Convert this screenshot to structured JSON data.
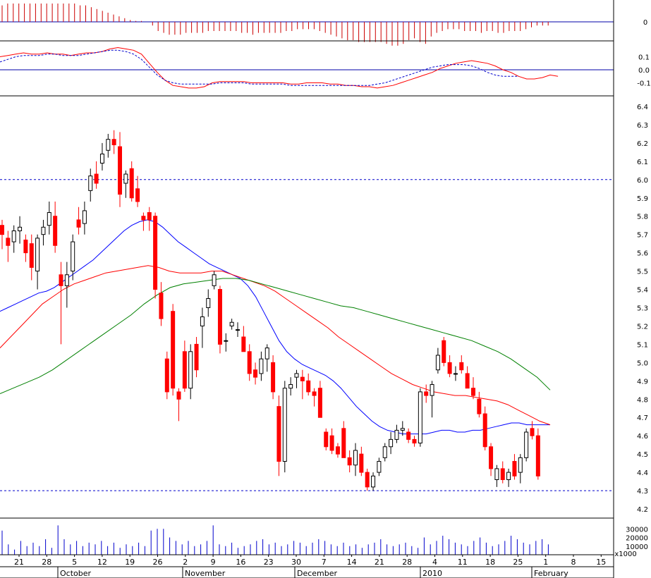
{
  "colors": {
    "up": "#000000",
    "down": "#ff0000",
    "ma_fast": "#0000ff",
    "ma_mid": "#ff0000",
    "ma_slow": "#008000",
    "hist": "#cc0000",
    "volume": "#0000cc",
    "ref_line": "#0000aa",
    "grid_dash": "#0000cc"
  },
  "chart_data": [
    {
      "type": "bar",
      "panel": "histogram",
      "ytick_labels": [
        "0"
      ],
      "values": [
        0.9,
        1.0,
        1.0,
        1.0,
        1.0,
        1.0,
        1.0,
        1.0,
        1.0,
        1.0,
        1.0,
        1.0,
        1.0,
        1.0,
        0.9,
        0.9,
        0.8,
        0.7,
        0.6,
        0.5,
        0.4,
        0.3,
        0.2,
        0.1,
        0.05,
        0.05,
        0.0,
        -0.2,
        -0.5,
        -0.6,
        -0.7,
        -0.7,
        -0.7,
        -0.6,
        -0.6,
        -0.6,
        -0.6,
        -0.5,
        -0.5,
        -0.5,
        -0.5,
        -0.5,
        -0.5,
        -0.6,
        -0.6,
        -0.7,
        -0.6,
        -0.6,
        -0.6,
        -0.6,
        -0.6,
        -0.5,
        -0.5,
        -0.4,
        -0.4,
        -0.4,
        -0.4,
        -0.5,
        -0.6,
        -0.7,
        -0.8,
        -0.9,
        -1.0,
        -1.0,
        -1.1,
        -1.1,
        -1.1,
        -1.1,
        -1.1,
        -1.2,
        -1.3,
        -1.3,
        -1.2,
        -1.0,
        -0.9,
        -1.1,
        -1.2,
        -0.8,
        -0.6,
        -0.5,
        -0.4,
        -0.4,
        -0.4,
        -0.5,
        -0.5,
        -0.5,
        -0.6,
        -0.5,
        -0.5,
        -0.6,
        -0.6,
        -0.5,
        -0.5,
        -0.5,
        -0.4,
        -0.3,
        -0.2,
        -0.2,
        -0.2
      ]
    },
    {
      "type": "line",
      "panel": "oscillator",
      "ytick_labels": [
        "0.1",
        "0.0",
        "-0.1"
      ],
      "ylim": [
        -0.2,
        0.2
      ],
      "series": [
        {
          "values": [
            0.1,
            0.11,
            0.12,
            0.13,
            0.12,
            0.12,
            0.13,
            0.12,
            0.12,
            0.11,
            0.12,
            0.13,
            0.13,
            0.14,
            0.16,
            0.17,
            0.16,
            0.15,
            0.12,
            0.05,
            -0.02,
            -0.08,
            -0.12,
            -0.13,
            -0.14,
            -0.14,
            -0.13,
            -0.1,
            -0.09,
            -0.09,
            -0.09,
            -0.09,
            -0.1,
            -0.1,
            -0.1,
            -0.1,
            -0.1,
            -0.11,
            -0.11,
            -0.1,
            -0.1,
            -0.1,
            -0.11,
            -0.11,
            -0.12,
            -0.12,
            -0.13,
            -0.13,
            -0.14,
            -0.13,
            -0.12,
            -0.1,
            -0.08,
            -0.06,
            -0.04,
            -0.02,
            0.01,
            0.03,
            0.05,
            0.06,
            0.07,
            0.06,
            0.05,
            0.03,
            0.0,
            -0.02,
            -0.05,
            -0.07,
            -0.07,
            -0.06,
            -0.04,
            -0.05
          ]
        },
        {
          "values": [
            0.06,
            0.08,
            0.1,
            0.11,
            0.11,
            0.11,
            0.12,
            0.12,
            0.11,
            0.11,
            0.11,
            0.12,
            0.13,
            0.14,
            0.15,
            0.15,
            0.14,
            0.12,
            0.08,
            0.02,
            -0.04,
            -0.08,
            -0.1,
            -0.11,
            -0.11,
            -0.11,
            -0.11,
            -0.11,
            -0.1,
            -0.1,
            -0.1,
            -0.1,
            -0.11,
            -0.11,
            -0.11,
            -0.11,
            -0.11,
            -0.12,
            -0.12,
            -0.12,
            -0.12,
            -0.12,
            -0.12,
            -0.12,
            -0.12,
            -0.12,
            -0.12,
            -0.12,
            -0.11,
            -0.1,
            -0.08,
            -0.06,
            -0.04,
            -0.02,
            0.0,
            0.02,
            0.03,
            0.04,
            0.04,
            0.04,
            0.03,
            0.01,
            -0.02,
            -0.04,
            -0.05,
            -0.05,
            -0.05
          ]
        }
      ]
    },
    {
      "type": "candlestick",
      "panel": "price",
      "ytick_labels": [
        "6.4",
        "6.3",
        "6.2",
        "6.1",
        "6.0",
        "5.9",
        "5.8",
        "5.7",
        "5.6",
        "5.5",
        "5.4",
        "5.3",
        "5.2",
        "5.1",
        "5.0",
        "4.9",
        "4.8",
        "4.7",
        "4.6",
        "4.5",
        "4.4",
        "4.3",
        "4.2"
      ],
      "ylim": [
        4.15,
        6.45
      ],
      "reference_lines": [
        6.0,
        4.3
      ],
      "ohlc": [
        [
          5.75,
          5.78,
          5.62,
          5.7
        ],
        [
          5.68,
          5.72,
          5.55,
          5.64
        ],
        [
          5.66,
          5.75,
          5.6,
          5.72
        ],
        [
          5.72,
          5.8,
          5.65,
          5.74
        ],
        [
          5.67,
          5.7,
          5.55,
          5.6
        ],
        [
          5.65,
          5.7,
          5.45,
          5.52
        ],
        [
          5.5,
          5.7,
          5.4,
          5.68
        ],
        [
          5.7,
          5.78,
          5.64,
          5.74
        ],
        [
          5.75,
          5.88,
          5.7,
          5.82
        ],
        [
          5.8,
          5.88,
          5.6,
          5.64
        ],
        [
          5.48,
          5.55,
          5.1,
          5.42
        ],
        [
          5.42,
          5.55,
          5.3,
          5.48
        ],
        [
          5.5,
          5.7,
          5.45,
          5.66
        ],
        [
          5.78,
          5.85,
          5.7,
          5.74
        ],
        [
          5.76,
          5.88,
          5.7,
          5.83
        ],
        [
          5.94,
          6.06,
          5.88,
          6.02
        ],
        [
          6.03,
          6.1,
          5.95,
          5.98
        ],
        [
          6.09,
          6.2,
          6.05,
          6.14
        ],
        [
          6.16,
          6.25,
          6.12,
          6.22
        ],
        [
          6.22,
          6.27,
          6.14,
          6.19
        ],
        [
          6.18,
          6.26,
          5.85,
          5.92
        ],
        [
          5.98,
          6.05,
          5.9,
          6.03
        ],
        [
          6.06,
          6.1,
          5.88,
          5.9
        ],
        [
          5.95,
          6.02,
          5.85,
          5.88
        ],
        [
          5.8,
          5.82,
          5.72,
          5.78
        ],
        [
          5.82,
          5.85,
          5.72,
          5.78
        ],
        [
          5.8,
          5.82,
          5.35,
          5.4
        ],
        [
          5.38,
          5.44,
          5.2,
          5.24
        ],
        [
          5.02,
          5.06,
          4.8,
          4.84
        ],
        [
          5.28,
          5.32,
          4.82,
          4.86
        ],
        [
          4.84,
          4.86,
          4.68,
          4.8
        ],
        [
          5.06,
          5.12,
          4.84,
          4.86
        ],
        [
          4.86,
          5.1,
          4.8,
          5.06
        ],
        [
          5.1,
          5.14,
          4.92,
          4.96
        ],
        [
          5.2,
          5.3,
          5.08,
          5.25
        ],
        [
          5.3,
          5.4,
          5.25,
          5.35
        ],
        [
          5.42,
          5.5,
          5.4,
          5.48
        ],
        [
          5.4,
          5.42,
          5.05,
          5.1
        ],
        [
          5.12,
          5.16,
          5.06,
          5.12
        ],
        [
          5.2,
          5.24,
          5.18,
          5.22
        ],
        [
          5.18,
          5.22,
          5.14,
          5.18
        ],
        [
          5.14,
          5.2,
          5.06,
          5.06
        ],
        [
          5.06,
          5.1,
          4.9,
          4.94
        ],
        [
          4.96,
          5.0,
          4.88,
          4.92
        ],
        [
          4.94,
          5.06,
          4.9,
          5.02
        ],
        [
          5.02,
          5.1,
          4.95,
          5.08
        ],
        [
          5.0,
          5.04,
          4.8,
          4.84
        ],
        [
          4.76,
          4.82,
          4.38,
          4.46
        ],
        [
          4.46,
          4.9,
          4.4,
          4.86
        ],
        [
          4.86,
          4.92,
          4.82,
          4.88
        ],
        [
          4.92,
          4.96,
          4.86,
          4.94
        ],
        [
          4.92,
          4.96,
          4.8,
          4.9
        ],
        [
          4.9,
          4.94,
          4.82,
          4.84
        ],
        [
          4.84,
          4.86,
          4.76,
          4.82
        ],
        [
          4.86,
          4.9,
          4.7,
          4.7
        ],
        [
          4.62,
          4.64,
          4.52,
          4.54
        ],
        [
          4.6,
          4.64,
          4.5,
          4.52
        ],
        [
          4.54,
          4.56,
          4.48,
          4.5
        ],
        [
          4.64,
          4.68,
          4.48,
          4.48
        ],
        [
          4.48,
          4.52,
          4.4,
          4.44
        ],
        [
          4.44,
          4.56,
          4.38,
          4.52
        ],
        [
          4.5,
          4.54,
          4.38,
          4.4
        ],
        [
          4.4,
          4.42,
          4.3,
          4.32
        ],
        [
          4.32,
          4.4,
          4.3,
          4.38
        ],
        [
          4.4,
          4.48,
          4.38,
          4.46
        ],
        [
          4.48,
          4.56,
          4.46,
          4.54
        ],
        [
          4.54,
          4.62,
          4.5,
          4.58
        ],
        [
          4.58,
          4.66,
          4.56,
          4.63
        ],
        [
          4.63,
          4.68,
          4.6,
          4.64
        ],
        [
          4.62,
          4.64,
          4.56,
          4.58
        ],
        [
          4.58,
          4.6,
          4.54,
          4.56
        ],
        [
          4.56,
          4.86,
          4.54,
          4.84
        ],
        [
          4.84,
          4.88,
          4.78,
          4.82
        ],
        [
          4.82,
          4.9,
          4.7,
          4.88
        ],
        [
          4.96,
          5.08,
          4.94,
          5.04
        ],
        [
          5.12,
          5.14,
          4.98,
          5.0
        ],
        [
          5.0,
          5.04,
          4.92,
          4.94
        ],
        [
          4.94,
          4.98,
          4.9,
          4.94
        ],
        [
          5.0,
          5.04,
          4.94,
          4.96
        ],
        [
          4.94,
          4.98,
          4.86,
          4.86
        ],
        [
          4.86,
          4.92,
          4.8,
          4.82
        ],
        [
          4.8,
          4.84,
          4.7,
          4.72
        ],
        [
          4.72,
          4.76,
          4.52,
          4.54
        ],
        [
          4.54,
          4.56,
          4.38,
          4.42
        ],
        [
          4.36,
          4.44,
          4.32,
          4.42
        ],
        [
          4.42,
          4.46,
          4.34,
          4.36
        ],
        [
          4.36,
          4.42,
          4.32,
          4.4
        ],
        [
          4.46,
          4.5,
          4.36,
          4.38
        ],
        [
          4.4,
          4.5,
          4.34,
          4.48
        ],
        [
          4.48,
          4.64,
          4.46,
          4.62
        ],
        [
          4.64,
          4.68,
          4.58,
          4.6
        ],
        [
          4.6,
          4.64,
          4.36,
          4.38
        ]
      ],
      "series": [
        {
          "values": [
            5.28,
            5.3,
            5.32,
            5.34,
            5.36,
            5.38,
            5.39,
            5.41,
            5.44,
            5.47,
            5.5,
            5.53,
            5.56,
            5.6,
            5.64,
            5.68,
            5.72,
            5.75,
            5.77,
            5.78,
            5.77,
            5.74,
            5.7,
            5.66,
            5.63,
            5.6,
            5.57,
            5.54,
            5.52,
            5.5,
            5.48,
            5.46,
            5.42,
            5.36,
            5.28,
            5.2,
            5.12,
            5.06,
            5.02,
            4.99,
            4.97,
            4.95,
            4.93,
            4.9,
            4.86,
            4.81,
            4.76,
            4.72,
            4.68,
            4.65,
            4.63,
            4.62,
            4.61,
            4.61,
            4.61,
            4.61,
            4.62,
            4.63,
            4.63,
            4.62,
            4.62,
            4.63,
            4.63,
            4.64,
            4.65,
            4.66,
            4.67,
            4.67,
            4.66,
            4.66,
            4.66,
            4.66
          ]
        },
        {
          "values": [
            5.08,
            5.14,
            5.2,
            5.26,
            5.32,
            5.36,
            5.4,
            5.43,
            5.45,
            5.47,
            5.49,
            5.5,
            5.51,
            5.52,
            5.53,
            5.52,
            5.5,
            5.49,
            5.49,
            5.49,
            5.5,
            5.5,
            5.48,
            5.46,
            5.44,
            5.42,
            5.39,
            5.35,
            5.31,
            5.27,
            5.23,
            5.19,
            5.14,
            5.1,
            5.06,
            5.02,
            4.98,
            4.94,
            4.91,
            4.88,
            4.86,
            4.84,
            4.83,
            4.82,
            4.82,
            4.81,
            4.8,
            4.79,
            4.77,
            4.74,
            4.71,
            4.68,
            4.66
          ]
        },
        {
          "values": [
            4.83,
            4.86,
            4.89,
            4.92,
            4.96,
            5.01,
            5.06,
            5.11,
            5.16,
            5.21,
            5.26,
            5.32,
            5.37,
            5.41,
            5.43,
            5.44,
            5.45,
            5.46,
            5.46,
            5.45,
            5.43,
            5.41,
            5.39,
            5.37,
            5.35,
            5.33,
            5.31,
            5.3,
            5.28,
            5.26,
            5.24,
            5.22,
            5.2,
            5.18,
            5.16,
            5.14,
            5.12,
            5.09,
            5.06,
            5.02,
            4.97,
            4.92,
            4.85
          ]
        }
      ]
    },
    {
      "type": "bar",
      "panel": "volume",
      "ytick_labels": [
        "30000",
        "20000",
        "10000"
      ],
      "unit_label": "x1000",
      "ylim": [
        0,
        40000
      ],
      "values": [
        28000,
        12000,
        6000,
        16000,
        10000,
        14000,
        10000,
        18000,
        8000,
        34000,
        18000,
        12000,
        16000,
        10000,
        14000,
        12000,
        16000,
        10000,
        14000,
        8000,
        12000,
        10000,
        14000,
        10000,
        28000,
        30000,
        30000,
        20000,
        16000,
        12000,
        16000,
        10000,
        12000,
        16000,
        34000,
        12000,
        10000,
        14000,
        8000,
        10000,
        12000,
        16000,
        18000,
        12000,
        14000,
        10000,
        12000,
        16000,
        14000,
        10000,
        14000,
        18000,
        16000,
        12000,
        10000,
        14000,
        10000,
        12000,
        8000,
        12000,
        14000,
        18000,
        12000,
        10000,
        12000,
        14000,
        10000,
        8000,
        20000,
        12000,
        16000,
        22000,
        18000,
        14000,
        12000,
        10000,
        16000,
        20000,
        14000,
        10000,
        12000,
        16000,
        22000,
        18000,
        14000,
        12000,
        16000,
        18000,
        12000,
        10000,
        14000,
        22000
      ]
    },
    {
      "type": "axis",
      "panel": "date-axis",
      "x_day_labels": [
        "21",
        "28",
        "5",
        "12",
        "19",
        "26",
        "2",
        "9",
        "16",
        "23",
        "30",
        "7",
        "14",
        "21",
        "28",
        "4",
        "11",
        "18",
        "25",
        "1",
        "8",
        "15"
      ],
      "x_month_labels": [
        "October",
        "November",
        "December",
        "2010",
        "February"
      ]
    }
  ]
}
